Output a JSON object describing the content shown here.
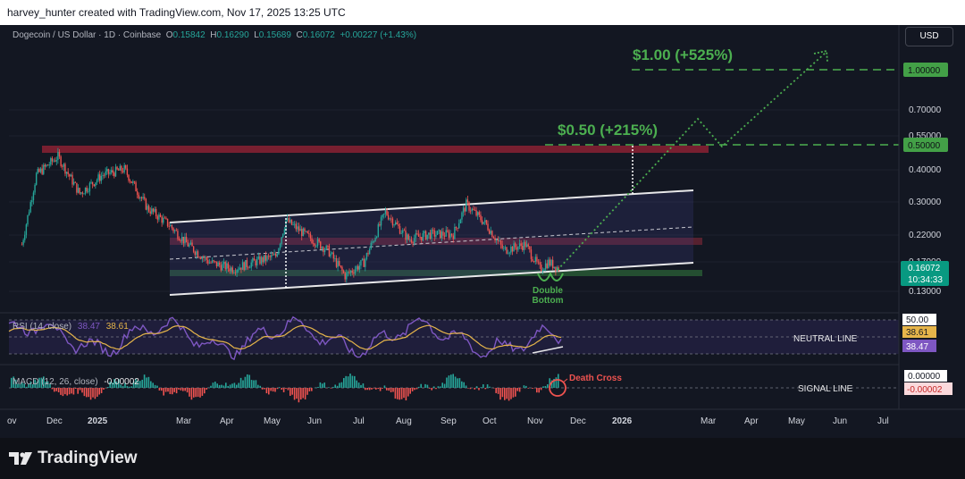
{
  "header": {
    "attribution": "harvey_hunter created with TradingView.com, Nov 17, 2025 13:25 UTC"
  },
  "legend": {
    "symbol": "Dogecoin / US Dollar · 1D · Coinbase",
    "o_label": "O",
    "o_value": "0.15842",
    "h_label": "H",
    "h_value": "0.16290",
    "l_label": "L",
    "l_value": "0.15689",
    "c_label": "C",
    "c_value": "0.16072",
    "change": "+0.00227 (+1.43%)"
  },
  "currency_button": "USD",
  "price_axis": {
    "ticks": [
      "0.70000",
      "0.55000",
      "0.40000",
      "0.30000",
      "0.22000",
      "0.17000",
      "0.13000"
    ],
    "target_badge_top": "1.00000",
    "target_badge_mid": "0.50000",
    "last_price": "0.16072",
    "countdown": "10:34:33"
  },
  "time_axis": {
    "labels": [
      "ov",
      "Dec",
      "2025",
      "Mar",
      "Apr",
      "May",
      "Jun",
      "Jul",
      "Aug",
      "Sep",
      "Oct",
      "Nov",
      "Dec",
      "2026",
      "Mar",
      "Apr",
      "May",
      "Jun",
      "Jul"
    ]
  },
  "annotations": {
    "target_top": "$1.00 (+525%)",
    "target_mid": "$0.50 (+215%)",
    "pattern_line1": "Double",
    "pattern_line2": "Bottom",
    "death_cross": "Death Cross",
    "neutral_line": "NEUTRAL LINE",
    "signal_line": "SIGNAL LINE"
  },
  "rsi": {
    "label": "RSI (14, close)",
    "value": "38.47",
    "ma_value": "38.61",
    "level_badge": "50.00",
    "ma_badge": "38.61",
    "value_badge": "38.47"
  },
  "macd": {
    "label": "MACD (12, 26, close)",
    "value": "-0.00002",
    "zero_badge": "0.00000",
    "value_badge": "-0.00002"
  },
  "footer": {
    "brand": "TradingView"
  },
  "colors": {
    "background": "#131722",
    "bull": "#26a69a",
    "bear": "#ef5350",
    "target_green": "#4caf50",
    "resistance_zone": "#9b2335",
    "support_zone": "#2e7d32",
    "rsi_line": "#7e57c2",
    "rsi_ma": "#e6b54a"
  },
  "chart_data": {
    "type": "candlestick",
    "symbol": "DOGE/USD",
    "timeframe": "1D",
    "price_scale": "log",
    "last_close": 0.16072,
    "ohlc_last": {
      "open": 0.15842,
      "high": 0.1629,
      "low": 0.15689,
      "close": 0.16072
    },
    "channel": {
      "upper": 0.25,
      "lower": 0.13,
      "mid": 0.18
    },
    "resistance_zone": [
      0.48,
      0.52
    ],
    "mid_zone": [
      0.205,
      0.215
    ],
    "support_zone": [
      0.147,
      0.152
    ],
    "targets": [
      0.5,
      1.0
    ],
    "price_series": [
      {
        "d": "2024-11-10",
        "c": 0.2
      },
      {
        "d": "2024-11-20",
        "c": 0.38
      },
      {
        "d": "2024-12-05",
        "c": 0.45
      },
      {
        "d": "2024-12-20",
        "c": 0.32
      },
      {
        "d": "2025-01-05",
        "c": 0.38
      },
      {
        "d": "2025-01-20",
        "c": 0.4
      },
      {
        "d": "2025-02-05",
        "c": 0.28
      },
      {
        "d": "2025-02-20",
        "c": 0.24
      },
      {
        "d": "2025-03-05",
        "c": 0.2
      },
      {
        "d": "2025-03-20",
        "c": 0.17
      },
      {
        "d": "2025-04-05",
        "c": 0.16
      },
      {
        "d": "2025-04-20",
        "c": 0.17
      },
      {
        "d": "2025-05-05",
        "c": 0.18
      },
      {
        "d": "2025-05-12",
        "c": 0.25
      },
      {
        "d": "2025-05-25",
        "c": 0.22
      },
      {
        "d": "2025-06-10",
        "c": 0.19
      },
      {
        "d": "2025-06-22",
        "c": 0.15
      },
      {
        "d": "2025-07-05",
        "c": 0.17
      },
      {
        "d": "2025-07-20",
        "c": 0.27
      },
      {
        "d": "2025-08-05",
        "c": 0.21
      },
      {
        "d": "2025-08-20",
        "c": 0.22
      },
      {
        "d": "2025-09-05",
        "c": 0.22
      },
      {
        "d": "2025-09-14",
        "c": 0.29
      },
      {
        "d": "2025-09-28",
        "c": 0.24
      },
      {
        "d": "2025-10-10",
        "c": 0.19
      },
      {
        "d": "2025-10-25",
        "c": 0.2
      },
      {
        "d": "2025-11-04",
        "c": 0.16
      },
      {
        "d": "2025-11-10",
        "c": 0.17
      },
      {
        "d": "2025-11-17",
        "c": 0.16072
      }
    ],
    "projection_path": [
      {
        "d": "2025-11-17",
        "c": 0.16
      },
      {
        "d": "2026-01-20",
        "c": 0.65
      },
      {
        "d": "2026-02-05",
        "c": 0.48
      },
      {
        "d": "2026-06-05",
        "c": 1.15
      }
    ],
    "rsi_levels": [
      70,
      50,
      30
    ],
    "rsi_last": 38.47,
    "rsi_ma_last": 38.61,
    "macd_last": -2e-05
  }
}
